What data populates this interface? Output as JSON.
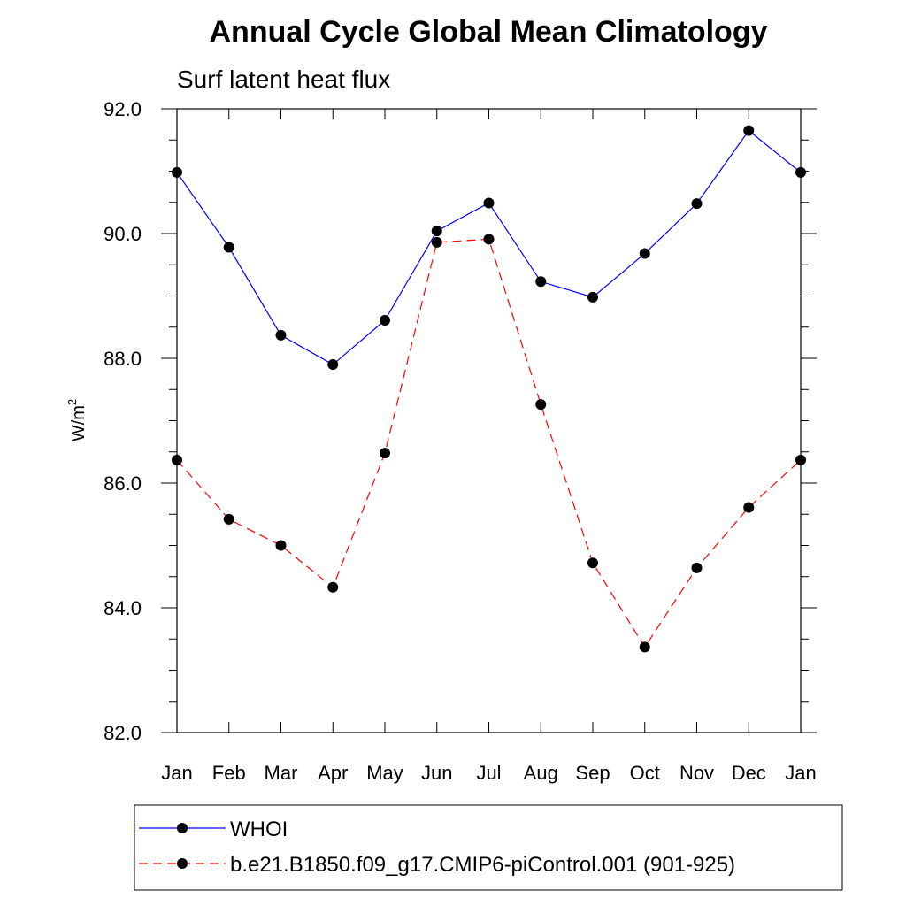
{
  "chart_data": {
    "type": "line",
    "title": "Annual Cycle Global Mean Climatology",
    "subtitle": "Surf latent heat flux",
    "xlabel": "",
    "ylabel": "W/m",
    "ylabel_superscript": "2",
    "categories": [
      "Jan",
      "Feb",
      "Mar",
      "Apr",
      "May",
      "Jun",
      "Jul",
      "Aug",
      "Sep",
      "Oct",
      "Nov",
      "Dec",
      "Jan"
    ],
    "ylim": [
      82.0,
      92.0
    ],
    "yticks": [
      "82.0",
      "84.0",
      "86.0",
      "88.0",
      "90.0",
      "92.0"
    ],
    "grid": false,
    "legend_position": "bottom",
    "series": [
      {
        "name": "WHOI",
        "color": "#0000ff",
        "line_style": "solid",
        "values": [
          90.98,
          89.78,
          88.37,
          87.9,
          88.61,
          90.04,
          90.49,
          89.23,
          88.98,
          89.68,
          90.48,
          91.65,
          90.98
        ]
      },
      {
        "name": "b.e21.B1850.f09_g17.CMIP6-piControl.001 (901-925)",
        "color": "#ff0000",
        "line_style": "dashed",
        "values": [
          86.37,
          85.42,
          85.0,
          84.33,
          86.48,
          89.86,
          89.91,
          87.26,
          84.72,
          83.37,
          84.64,
          85.61,
          86.37
        ]
      }
    ]
  }
}
